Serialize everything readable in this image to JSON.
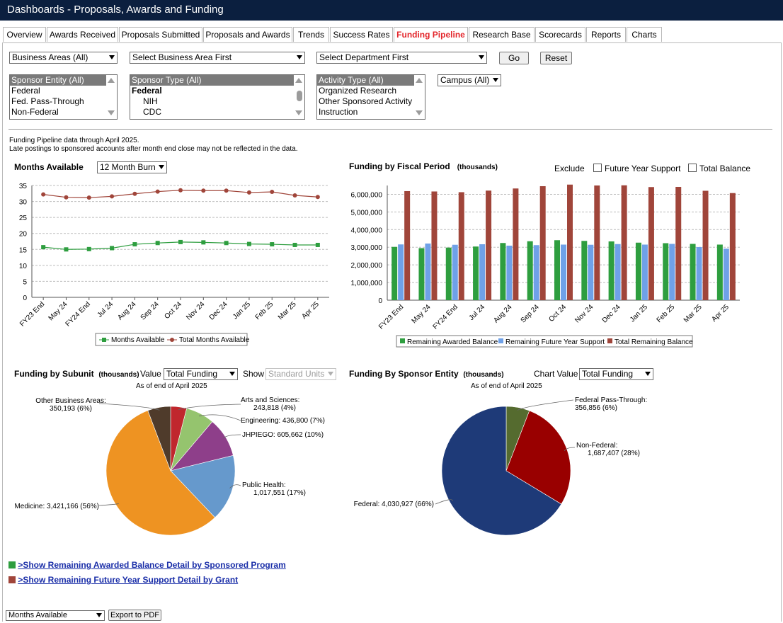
{
  "app_title": "Dashboards - Proposals, Awards and Funding",
  "tabs": [
    {
      "label": "Overview",
      "active": false
    },
    {
      "label": "Awards Received",
      "active": false
    },
    {
      "label": "Proposals Submitted",
      "active": false
    },
    {
      "label": "Proposals and Awards",
      "active": false
    },
    {
      "label": "Trends",
      "active": false
    },
    {
      "label": "Success Rates",
      "active": false
    },
    {
      "label": "Funding Pipeline",
      "active": true
    },
    {
      "label": "Research Base",
      "active": false
    },
    {
      "label": "Scorecards",
      "active": false
    },
    {
      "label": "Reports",
      "active": false
    },
    {
      "label": "Charts",
      "active": false
    }
  ],
  "filters": {
    "business_areas": "Business Areas (All)",
    "business_area": "Select Business Area First",
    "department": "Select Department First",
    "go_label": "Go",
    "reset_label": "Reset",
    "campus": "Campus (All)",
    "sponsor_entity_options": [
      "Sponsor Entity (All)",
      "Federal",
      "Fed. Pass-Through",
      "Non-Federal"
    ],
    "sponsor_type_options": [
      "Sponsor Type (All)",
      "Federal",
      "NIH",
      "CDC"
    ],
    "activity_type_options": [
      "Activity Type (All)",
      "Organized Research",
      "Other Sponsored Activity",
      "Instruction"
    ]
  },
  "notes": {
    "line1": "Funding Pipeline data through April 2025.",
    "line2": "Late postings to sponsored accounts after month end close may not be reflected in the data."
  },
  "months_chart": {
    "title": "Months Available",
    "burn_select": "12 Month Burn"
  },
  "fiscal_chart": {
    "title": "Funding by Fiscal Period",
    "units": "(thousands)",
    "exclude_label": "Exclude",
    "future_year_label": "Future Year Support",
    "total_balance_label": "Total Balance"
  },
  "subunit_chart": {
    "title": "Funding by Subunit",
    "units": "(thousands)",
    "value_label": "Value",
    "value_select": "Total Funding",
    "show_label": "Show",
    "show_select": "Standard Units",
    "as_of": "As of end of April 2025"
  },
  "sponsor_chart": {
    "title": "Funding By Sponsor Entity",
    "units": "(thousands)",
    "chart_value_label": "Chart Value",
    "chart_value_select": "Total Funding",
    "as_of": "As of end of April 2025"
  },
  "links": {
    "awarded_detail": ">Show Remaining Awarded Balance Detail by Sponsored Program",
    "future_detail": ">Show Remaining Future Year Support Detail by Grant"
  },
  "footer": {
    "view_select": "Months Available",
    "export_label": "Export to PDF"
  },
  "colors": {
    "title_bar": "#0b1f3f",
    "active_tab": "#e3262b",
    "awarded": "#2e9e3f",
    "future": "#6fa1e8",
    "total": "#a0453a",
    "link": "#1a2ea8"
  },
  "chart_data": [
    {
      "type": "line",
      "x": [
        "FY23 End",
        "May 24",
        "FY24 End",
        "Jul 24",
        "Aug 24",
        "Sep 24",
        "Oct 24",
        "Nov 24",
        "Dec 24",
        "Jan 25",
        "Feb 25",
        "Mar 25",
        "Apr 25"
      ],
      "ylim": [
        0,
        35
      ],
      "yticks": [
        0,
        5,
        10,
        15,
        20,
        25,
        30,
        35
      ],
      "series": [
        {
          "name": "Months Available",
          "color": "#2e9e3f",
          "values": [
            15.7,
            15.0,
            15.1,
            15.4,
            16.6,
            17.0,
            17.3,
            17.2,
            17.0,
            16.7,
            16.6,
            16.4,
            16.4
          ]
        },
        {
          "name": "Total Months Available",
          "color": "#a0453a",
          "values": [
            32.2,
            31.3,
            31.2,
            31.6,
            32.4,
            33.1,
            33.5,
            33.4,
            33.4,
            32.8,
            33.0,
            31.9,
            31.4
          ]
        }
      ],
      "legend": "bottom"
    },
    {
      "type": "bar",
      "categories": [
        "FY23 End",
        "May 24",
        "FY24 End",
        "Jul 24",
        "Aug 24",
        "Sep 24",
        "Oct 24",
        "Nov 24",
        "Dec 24",
        "Jan 25",
        "Feb 25",
        "Mar 25",
        "Apr 25"
      ],
      "ylim": [
        0,
        6500000
      ],
      "yticks": [
        "0",
        "1,000,000",
        "2,000,000",
        "3,000,000",
        "4,000,000",
        "5,000,000",
        "6,000,000"
      ],
      "ytick_values": [
        0,
        1000000,
        2000000,
        3000000,
        4000000,
        5000000,
        6000000
      ],
      "series": [
        {
          "name": "Remaining Awarded Balance",
          "color": "#2e9e3f",
          "values": [
            3020000,
            2950000,
            2980000,
            3040000,
            3240000,
            3340000,
            3400000,
            3360000,
            3330000,
            3260000,
            3230000,
            3190000,
            3150000
          ]
        },
        {
          "name": "Remaining Future Year Support",
          "color": "#6fa1e8",
          "values": [
            3160000,
            3210000,
            3140000,
            3170000,
            3090000,
            3120000,
            3150000,
            3140000,
            3180000,
            3150000,
            3190000,
            3010000,
            2920000
          ]
        },
        {
          "name": "Total Remaining Balance",
          "color": "#a0453a",
          "values": [
            6180000,
            6160000,
            6120000,
            6210000,
            6330000,
            6460000,
            6550000,
            6500000,
            6510000,
            6410000,
            6420000,
            6200000,
            6070000
          ]
        }
      ],
      "legend": "bottom"
    },
    {
      "type": "pie",
      "title": "As of end of April 2025",
      "slices": [
        {
          "label": "Arts and Sciences:",
          "value_text": "243,818 (4%)",
          "value": 243818,
          "color": "#c0272d"
        },
        {
          "label": "Engineering:",
          "value_text": "436,800 (7%)",
          "value": 436800,
          "color": "#95c46e"
        },
        {
          "label": "JHPIEGO:",
          "value_text": "605,662 (10%)",
          "value": 605662,
          "color": "#8e3f8a"
        },
        {
          "label": "Public Health:",
          "value_text": "1,017,551 (17%)",
          "value": 1017551,
          "color": "#6699cc"
        },
        {
          "label": "Medicine:",
          "value_text": "3,421,166 (56%)",
          "value": 3421166,
          "color": "#ee9322"
        },
        {
          "label": "Other Business Areas:",
          "value_text": "350,193 (6%)",
          "value": 350193,
          "color": "#4f3b2b"
        }
      ]
    },
    {
      "type": "pie",
      "title": "As of end of April 2025",
      "slices": [
        {
          "label": "Federal Pass-Through:",
          "value_text": "356,856 (6%)",
          "value": 356856,
          "color": "#556b2f"
        },
        {
          "label": "Non-Federal:",
          "value_text": "1,687,407 (28%)",
          "value": 1687407,
          "color": "#990000"
        },
        {
          "label": "Federal:",
          "value_text": "4,030,927 (66%)",
          "value": 4030927,
          "color": "#1e3a78"
        }
      ]
    }
  ]
}
